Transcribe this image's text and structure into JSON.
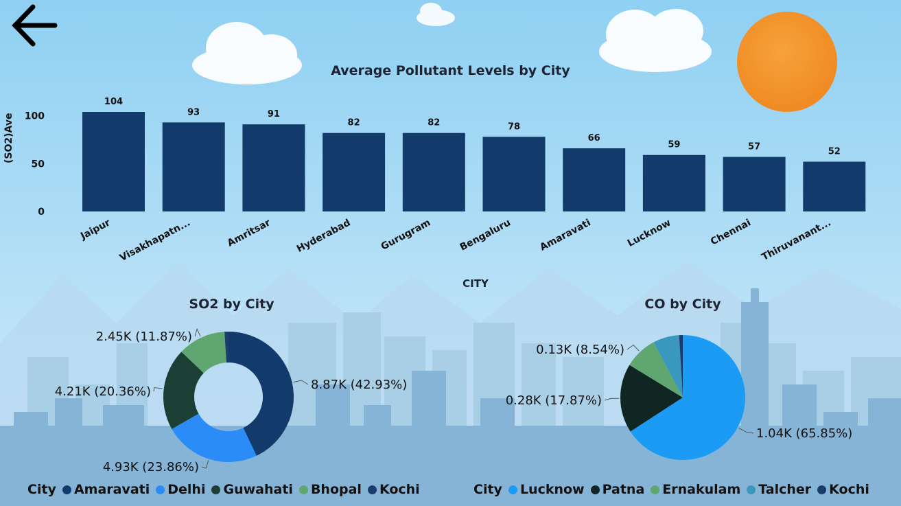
{
  "back_button": {
    "icon": "arrow-left-icon"
  },
  "colors": {
    "sky_top": "#8fd0f2",
    "sky_bottom": "#cfeafa",
    "bar": "#123a6b",
    "sun": "#f3952c",
    "city_far": "#a9cfe6",
    "city_near": "#86b4d6"
  },
  "chart_data": [
    {
      "type": "bar",
      "title": "Average Pollutant Levels by City",
      "xlabel": "CITY",
      "ylabel": "(SO2)Ave",
      "categories": [
        "Jaipur",
        "Visakhapatn...",
        "Amritsar",
        "Hyderabad",
        "Gurugram",
        "Bengaluru",
        "Amaravati",
        "Lucknow",
        "Chennai",
        "Thiruvanant..."
      ],
      "values": [
        104,
        93,
        91,
        82,
        82,
        78,
        66,
        59,
        57,
        52
      ],
      "data_labels": [
        "104",
        "93",
        "91",
        "82",
        "82",
        "78",
        "66",
        "59",
        "57",
        "52"
      ],
      "yticks": [
        "0",
        "50",
        "100"
      ],
      "ylim": [
        0,
        104
      ],
      "grid": false
    },
    {
      "type": "pie",
      "variant": "donut",
      "title": "SO2 by City",
      "legend_title": "City",
      "legend_position": "bottom-left",
      "slices": [
        {
          "label": "Amaravati",
          "value": 8870,
          "percent": 42.93,
          "data_label": "8.87K (42.93%)",
          "color": "#123a6b"
        },
        {
          "label": "Delhi",
          "value": 4930,
          "percent": 23.86,
          "data_label": "4.93K (23.86%)",
          "color": "#2b8cf7"
        },
        {
          "label": "Guwahati",
          "value": 4210,
          "percent": 20.36,
          "data_label": "4.21K (20.36%)",
          "color": "#1b3f34"
        },
        {
          "label": "Bhopal",
          "value": 2450,
          "percent": 11.87,
          "data_label": "2.45K (11.87%)",
          "color": "#5fa670"
        },
        {
          "label": "Kochi",
          "value": 200,
          "percent": 0.98,
          "data_label": "",
          "color": "#1a3d6e"
        }
      ]
    },
    {
      "type": "pie",
      "title": "CO by City",
      "legend_title": "City",
      "legend_position": "bottom-right",
      "slices": [
        {
          "label": "Lucknow",
          "value": 1040,
          "percent": 65.85,
          "data_label": "1.04K (65.85%)",
          "color": "#1c9bf5"
        },
        {
          "label": "Patna",
          "value": 280,
          "percent": 17.87,
          "data_label": "0.28K (17.87%)",
          "color": "#0f2623"
        },
        {
          "label": "Ernakulam",
          "value": 130,
          "percent": 8.54,
          "data_label": "0.13K (8.54%)",
          "color": "#5fa670"
        },
        {
          "label": "Talcher",
          "value": 110,
          "percent": 6.8,
          "data_label": "",
          "color": "#3a98be"
        },
        {
          "label": "Kochi",
          "value": 15,
          "percent": 0.94,
          "data_label": "",
          "color": "#1a3d6e"
        }
      ]
    }
  ]
}
